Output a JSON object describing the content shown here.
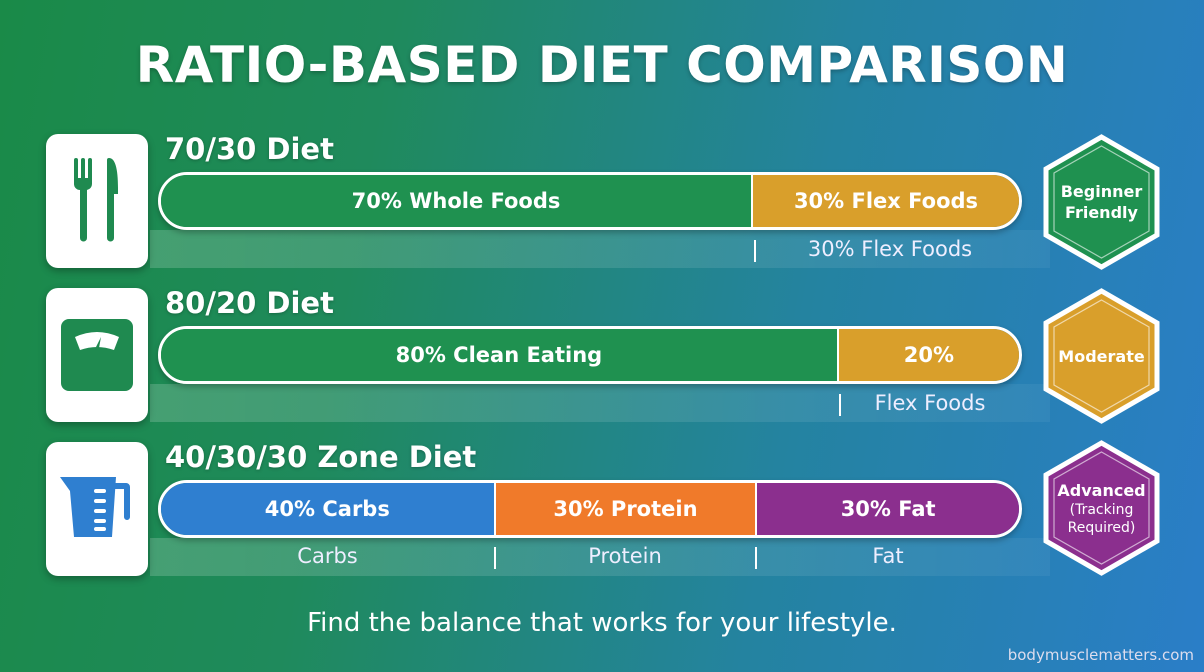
{
  "title": "RATIO-BASED DIET COMPARISON",
  "colors": {
    "green": "#1f9150",
    "gold": "#d99f2b",
    "blue": "#2f7fd0",
    "orange": "#f07a2a",
    "purple": "#8b2f8e"
  },
  "diets": [
    {
      "name": "70/30 Diet",
      "icon": "fork-knife-icon",
      "segments": [
        {
          "pct": 70,
          "label": "70% Whole Foods",
          "color": "#1f9150"
        },
        {
          "pct": 30,
          "label": "30% Flex Foods",
          "color": "#d99f2b"
        }
      ],
      "sublabels": [
        "30% Flex Foods"
      ],
      "badge": {
        "line1": "Beginner",
        "line2": "Friendly",
        "color": "#1f9150"
      }
    },
    {
      "name": "80/20 Diet",
      "icon": "scale-icon",
      "segments": [
        {
          "pct": 80,
          "label": "80% Clean Eating",
          "color": "#1f9150"
        },
        {
          "pct": 20,
          "label": "20%",
          "color": "#d99f2b"
        }
      ],
      "sublabels": [
        "Flex Foods"
      ],
      "badge": {
        "line1": "Moderate",
        "color": "#d99f2b"
      }
    },
    {
      "name": "40/30/30 Zone Diet",
      "icon": "measuring-cup-icon",
      "segments": [
        {
          "pct": 40,
          "label": "40% Carbs",
          "color": "#2f7fd0"
        },
        {
          "pct": 30,
          "label": "30% Protein",
          "color": "#f07a2a"
        },
        {
          "pct": 30,
          "label": "30% Fat",
          "color": "#8b2f8e"
        }
      ],
      "sublabels": [
        "Carbs",
        "Protein",
        "Fat"
      ],
      "badge": {
        "line1": "Advanced",
        "line2": "(Tracking",
        "line3": "Required)",
        "color": "#8b2f8e"
      }
    }
  ],
  "footer": "Find the balance that works for your lifestyle.",
  "credit": "bodymusclematters.com"
}
